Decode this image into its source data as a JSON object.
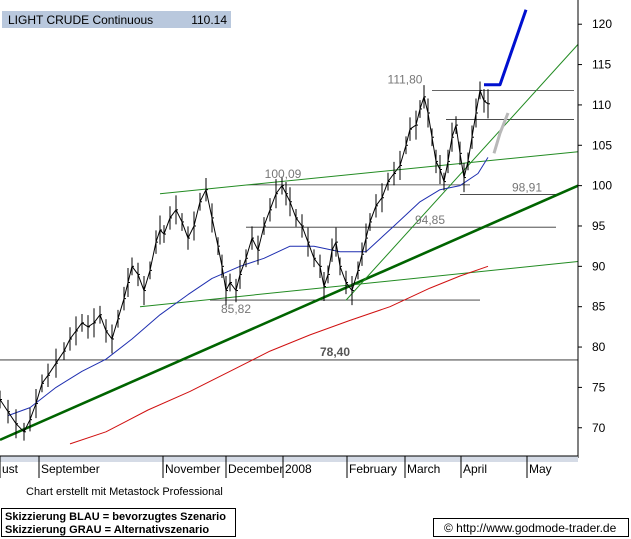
{
  "header": {
    "instrument": "LIGHT CRUDE Continuous",
    "last_value": "110.14"
  },
  "footer": {
    "credit": "Chart erstellt mit Metastock Professional",
    "legend_blue": "Skizzierung BLAU = bevorzugtes Szenario",
    "legend_gray": "Skizzierung GRAU = Alternativszenario",
    "url": "© http://www.godmode-trader.de"
  },
  "colors": {
    "price": "#000000",
    "ma_short": "#1f2fb0",
    "ma_long": "#d01010",
    "trend_major": "#006400",
    "trend_minor": "#228b22",
    "blue_scenario": "#0010d0",
    "gray_scenario": "#b8b8b8",
    "level": "#444444",
    "label_gray": "#777777"
  },
  "chart_data": {
    "type": "line",
    "title": "",
    "xlabel": "",
    "ylabel": "",
    "ylim": [
      66.5,
      123
    ],
    "y_ticks": [
      70,
      75,
      80,
      85,
      90,
      95,
      100,
      105,
      110,
      115,
      120
    ],
    "y_axis_side": "right",
    "x_tick_labels": [
      "ust",
      "September",
      "November",
      "December",
      "2008",
      "February",
      "March",
      "April",
      "May"
    ],
    "x_tick_positions": [
      0,
      39,
      163,
      226,
      283,
      347,
      405,
      461,
      527
    ],
    "x_domain": [
      0,
      578
    ],
    "series": [
      {
        "role": "price",
        "x": [
          0,
          8,
          16,
          24,
          30,
          36,
          42,
          48,
          56,
          64,
          70,
          76,
          82,
          88,
          94,
          100,
          106,
          112,
          118,
          124,
          128,
          132,
          138,
          144,
          150,
          156,
          160,
          164,
          170,
          176,
          182,
          188,
          194,
          200,
          206,
          212,
          218,
          222,
          226,
          230,
          236,
          240,
          246,
          252,
          258,
          264,
          270,
          276,
          282,
          286,
          290,
          296,
          302,
          308,
          314,
          320,
          324,
          328,
          332,
          336,
          340,
          346,
          352,
          358,
          362,
          366,
          370,
          376,
          382,
          388,
          394,
          400,
          406,
          410,
          416,
          420,
          424,
          428,
          432,
          436,
          440,
          444,
          448,
          452,
          456,
          460,
          464,
          468,
          472,
          476,
          480,
          484,
          488
        ],
        "values": [
          73.5,
          72,
          70.5,
          69.5,
          71,
          73,
          75.5,
          76.5,
          78,
          79.5,
          81,
          82,
          83,
          82.5,
          83,
          84,
          82,
          81,
          83.5,
          86,
          88,
          90,
          89,
          87,
          89.5,
          93,
          94.5,
          94,
          96,
          97,
          95.5,
          93.5,
          95,
          98,
          99.5,
          96,
          92.5,
          90,
          87,
          88,
          87,
          89,
          91,
          93.5,
          92,
          95,
          97,
          99,
          100,
          99,
          98,
          96,
          95,
          93,
          91,
          90,
          87.5,
          89,
          92,
          93,
          90,
          88,
          87,
          89.5,
          91.5,
          93.5,
          95.5,
          97.5,
          98.5,
          100.5,
          101.5,
          102.5,
          105,
          107,
          107.5,
          109.5,
          111,
          109,
          106,
          103,
          102,
          100.5,
          103,
          106,
          107.5,
          104,
          101,
          103,
          106,
          109,
          111.8,
          110.5,
          110.14
        ]
      },
      {
        "role": "ma_short",
        "x": [
          8,
          30,
          56,
          82,
          106,
          132,
          160,
          188,
          212,
          240,
          264,
          290,
          314,
          340,
          366,
          394,
          420,
          440,
          460,
          478,
          488
        ],
        "values": [
          71.5,
          72.5,
          75,
          77,
          78.5,
          81,
          84,
          86.5,
          88.5,
          90,
          91,
          92.5,
          92.5,
          91.8,
          91.8,
          95,
          98,
          99.5,
          100,
          101.5,
          103.5
        ]
      },
      {
        "role": "ma_long",
        "x": [
          70,
          106,
          148,
          190,
          230,
          270,
          310,
          350,
          390,
          430,
          460,
          488
        ],
        "values": [
          68,
          69.5,
          72.2,
          74.5,
          77,
          79.5,
          81.5,
          83.3,
          85,
          87.3,
          88.8,
          90
        ]
      },
      {
        "role": "blue_scenario",
        "x": [
          484,
          500,
          526
        ],
        "values": [
          112.5,
          112.5,
          121.8
        ]
      },
      {
        "role": "gray_scenario",
        "x": [
          494,
          500,
          508
        ],
        "values": [
          104,
          106.5,
          109
        ]
      }
    ],
    "trendlines": [
      {
        "x": [
          0,
          578
        ],
        "values": [
          68.5,
          100
        ],
        "style": "major"
      },
      {
        "x": [
          160,
          578
        ],
        "values": [
          99,
          104.2
        ],
        "style": "minor"
      },
      {
        "x": [
          140,
          578
        ],
        "values": [
          85,
          90.6
        ],
        "style": "minor"
      },
      {
        "x": [
          346,
          578
        ],
        "values": [
          85.8,
          117.5
        ],
        "style": "minor"
      }
    ],
    "levels": [
      {
        "value": 78.4,
        "x": [
          0,
          578
        ],
        "label": "78,40"
      },
      {
        "value": 111.8,
        "x": [
          432,
          574
        ],
        "label": "111,80"
      },
      {
        "value": 100.09,
        "x": [
          246,
          470
        ],
        "label": "100,09"
      },
      {
        "value": 98.91,
        "x": [
          460,
          560
        ],
        "label": "98,91"
      },
      {
        "value": 94.85,
        "x": [
          246,
          556
        ],
        "label": "94,85"
      },
      {
        "value": 85.82,
        "x": [
          210,
          480
        ],
        "label": "85,82"
      },
      {
        "value": 108.2,
        "x": [
          446,
          574
        ],
        "label": ""
      }
    ]
  }
}
